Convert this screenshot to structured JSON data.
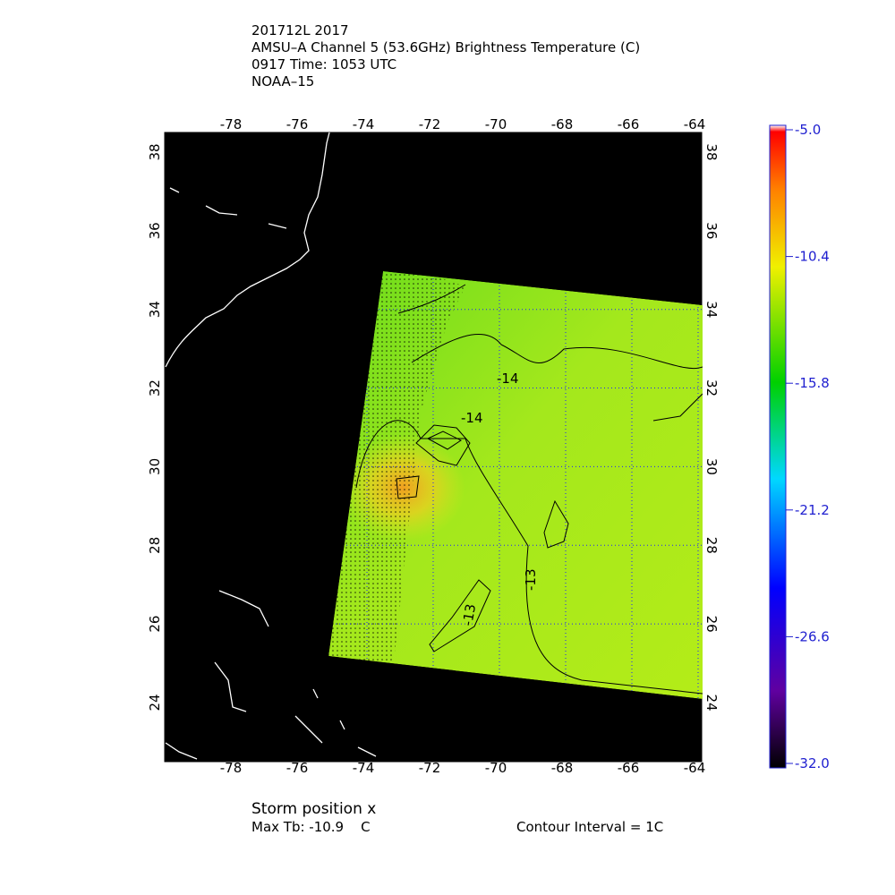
{
  "header": {
    "lines": [
      "201712L 2017",
      "AMSU–A Channel 5 (53.6GHz) Brightness Temperature (C)",
      "0917 Time: 1053 UTC",
      "NOAA–15"
    ]
  },
  "map": {
    "lon_ticks": [
      -78,
      -76,
      -74,
      -72,
      -70,
      -68,
      -66,
      -64
    ],
    "lat_ticks": [
      24,
      26,
      28,
      30,
      32,
      34,
      36,
      38
    ]
  },
  "contours": {
    "labels": [
      "-14",
      "-14",
      "-13",
      "-13"
    ]
  },
  "colorbar": {
    "ticks": [
      "-5.0",
      "-10.4",
      "-15.8",
      "-21.2",
      "-26.6",
      "-32.0"
    ]
  },
  "footer": {
    "storm": "Storm position x",
    "max_tb": "Max Tb: -10.9    C",
    "interval": "Contour Interval = 1C"
  }
}
